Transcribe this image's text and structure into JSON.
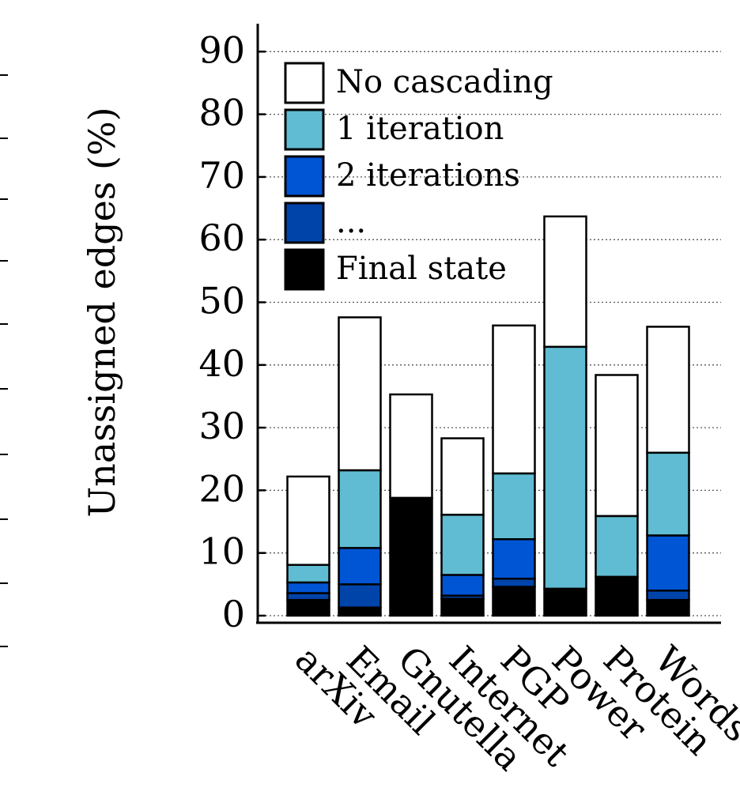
{
  "chart_data": {
    "type": "bar",
    "stacked": true,
    "title": "",
    "xlabel": "",
    "ylabel": "Unassigned edges (%)",
    "ylim": [
      0,
      95
    ],
    "yticks": [
      0,
      10,
      20,
      30,
      40,
      50,
      60,
      70,
      80,
      90
    ],
    "grid": "horizontal dotted",
    "legend_position": "top-left",
    "categories": [
      "arXiv",
      "Email",
      "Gnutella",
      "Internet",
      "PGP",
      "Power",
      "Protein",
      "Words"
    ],
    "series": [
      {
        "name": "Final state",
        "color": "#000000",
        "values": [
          2.5,
          1.3,
          18.8,
          2.7,
          4.6,
          4.3,
          6.2,
          2.5
        ]
      },
      {
        "name": "...",
        "color": "#0044aa",
        "values": [
          1.1,
          3.7,
          0,
          0.5,
          1.3,
          0,
          0,
          1.5
        ]
      },
      {
        "name": "2 iterations",
        "color": "#0055d4",
        "values": [
          1.7,
          5.8,
          0,
          3.3,
          6.3,
          0,
          0,
          8.8
        ]
      },
      {
        "name": "1 iteration",
        "color": "#5fbcd3",
        "values": [
          2.8,
          12.4,
          0,
          9.6,
          10.5,
          38.6,
          9.7,
          13.2
        ]
      },
      {
        "name": "No cascading",
        "color": "#ffffff",
        "values": [
          14.1,
          24.4,
          16.5,
          12.2,
          23.6,
          20.8,
          22.5,
          20.1
        ]
      }
    ],
    "legend_order": [
      "No cascading",
      "1 iteration",
      "2 iterations",
      "...",
      "Final state"
    ]
  }
}
